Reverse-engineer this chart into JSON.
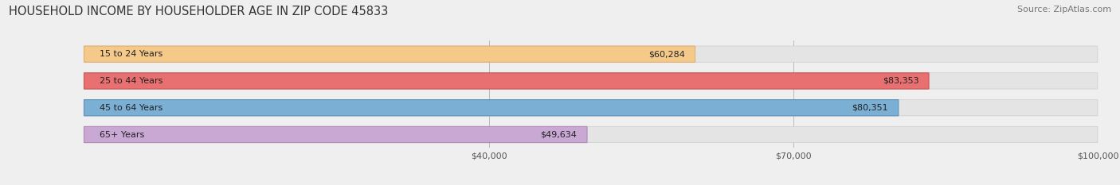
{
  "title": "HOUSEHOLD INCOME BY HOUSEHOLDER AGE IN ZIP CODE 45833",
  "source": "Source: ZipAtlas.com",
  "categories": [
    "15 to 24 Years",
    "25 to 44 Years",
    "45 to 64 Years",
    "65+ Years"
  ],
  "values": [
    60284,
    83353,
    80351,
    49634
  ],
  "bar_colors": [
    "#f5c98a",
    "#e87070",
    "#7bafd4",
    "#c9a8d4"
  ],
  "bar_edge_colors": [
    "#e0b070",
    "#cc5555",
    "#5a90bf",
    "#b08aba"
  ],
  "value_labels": [
    "$60,284",
    "$83,353",
    "$80,351",
    "$49,634"
  ],
  "xmin": 0,
  "xmax": 100000,
  "xticks": [
    40000,
    70000,
    100000
  ],
  "xtick_labels": [
    "$40,000",
    "$70,000",
    "$100,000"
  ],
  "background_color": "#efefef",
  "bar_background_color": "#e4e4e4",
  "title_fontsize": 10.5,
  "source_fontsize": 8,
  "label_fontsize": 8,
  "value_fontsize": 8,
  "tick_fontsize": 8
}
